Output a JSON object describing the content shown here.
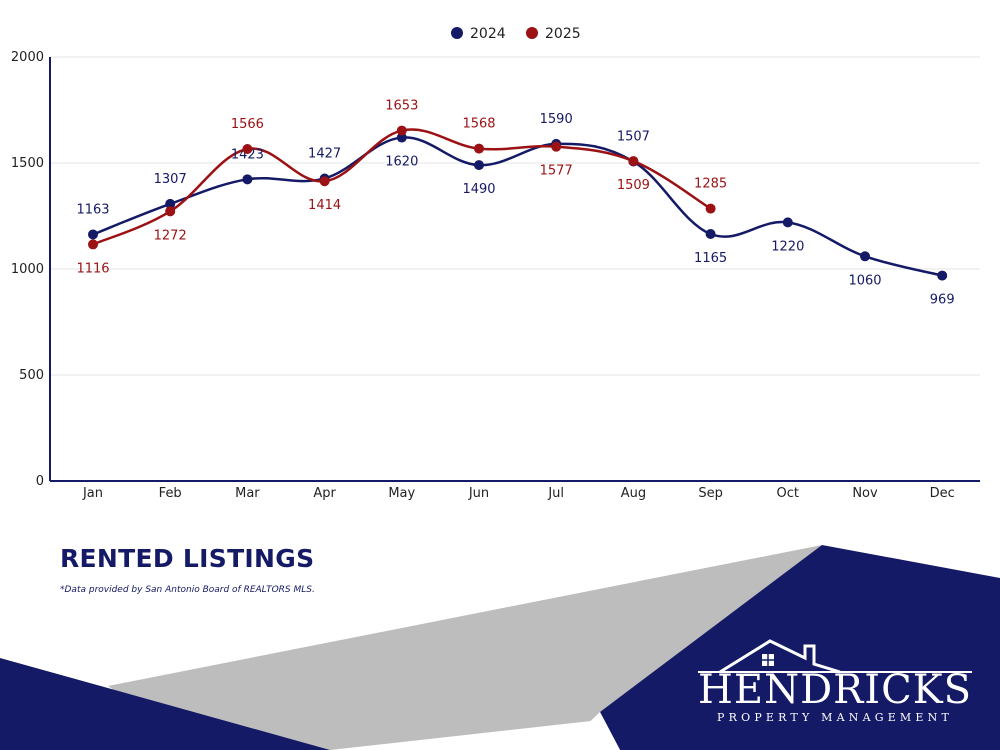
{
  "chart_data": {
    "type": "line",
    "categories": [
      "Jan",
      "Feb",
      "Mar",
      "Apr",
      "May",
      "Jun",
      "Jul",
      "Aug",
      "Sep",
      "Oct",
      "Nov",
      "Dec"
    ],
    "series": [
      {
        "name": "2024",
        "color": "#141a66",
        "values": [
          1163,
          1307,
          1423,
          1427,
          1620,
          1490,
          1590,
          1507,
          1165,
          1220,
          1060,
          969
        ]
      },
      {
        "name": "2025",
        "color": "#9b1114",
        "values": [
          1116,
          1272,
          1566,
          1414,
          1653,
          1568,
          1577,
          1509,
          1285,
          null,
          null,
          null
        ]
      }
    ],
    "label_pos": {
      "2024": [
        "above",
        "above",
        "above",
        "above",
        "below",
        "below",
        "above",
        "above",
        "below",
        "below",
        "below",
        "below"
      ],
      "2025": [
        "below",
        "below",
        "above",
        "below",
        "above",
        "above",
        "below",
        "below",
        "above",
        null,
        null,
        null
      ]
    },
    "ylim": [
      0,
      2000
    ],
    "yticks": [
      0,
      500,
      1000,
      1500,
      2000
    ],
    "grid": true,
    "legend_position": "top-center",
    "title": "RENTED LISTINGS",
    "xlabel": "",
    "ylabel": ""
  },
  "page": {
    "title": "RENTED LISTINGS",
    "source_note": "*Data provided by San Antonio Board of REALTORS MLS."
  },
  "logo": {
    "name": "HENDRICKS",
    "subtitle": "PROPERTY MANAGEMENT",
    "icon": "house-roof-icon"
  },
  "colors": {
    "navy": "#141a66",
    "red": "#9b1114",
    "gray": "#bdbdbd"
  }
}
